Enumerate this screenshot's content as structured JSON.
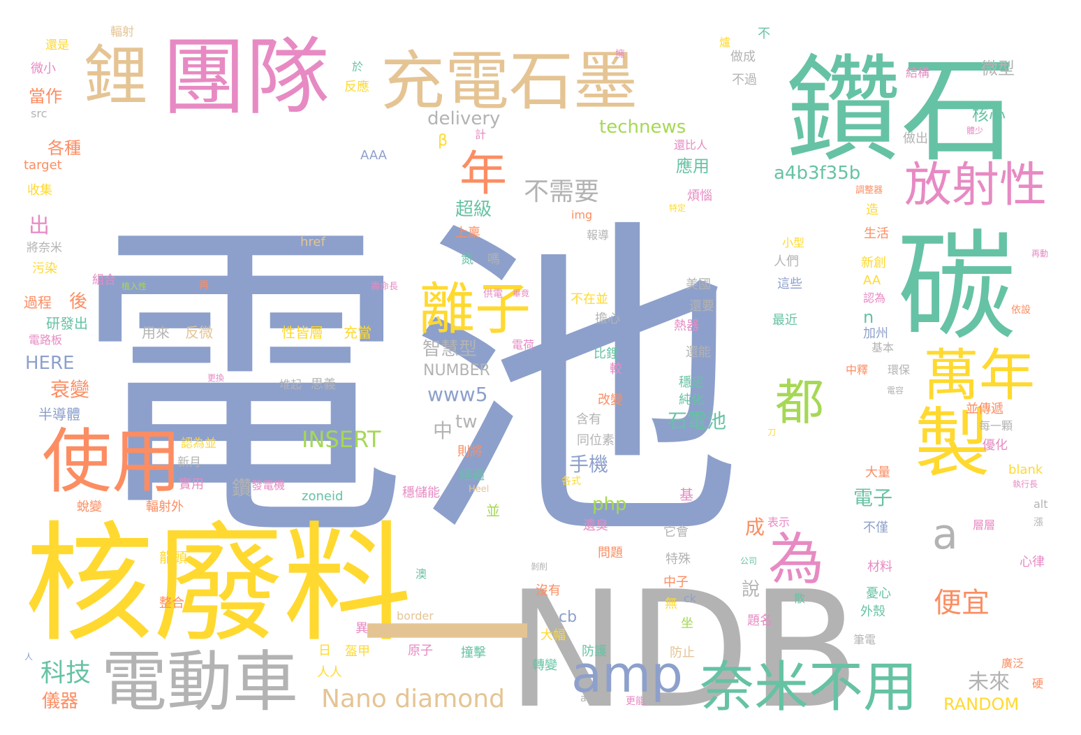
{
  "colors": {
    "blue": "#8da0cb",
    "green": "#66c2a5",
    "orange": "#fc8d62",
    "pink": "#e78ac3",
    "lime": "#a6d854",
    "yellow": "#ffd92f",
    "tan": "#e5c494",
    "gray": "#b3b3b3"
  },
  "words": [
    {
      "text": "電池",
      "color": "blue"
    },
    {
      "text": "NDB",
      "color": "gray"
    },
    {
      "text": "核廢料",
      "color": "yellow"
    },
    {
      "text": "鑽石",
      "color": "green"
    },
    {
      "text": "團隊",
      "color": "pink"
    },
    {
      "text": "充電石墨",
      "color": "tan"
    },
    {
      "text": "鋰",
      "color": "tan"
    },
    {
      "text": "碳",
      "color": "green"
    },
    {
      "text": "電動車",
      "color": "gray"
    },
    {
      "text": "使用",
      "color": "orange"
    },
    {
      "text": "奈米不用",
      "color": "green"
    },
    {
      "text": "萬年",
      "color": "yellow"
    },
    {
      "text": "製",
      "color": "yellow"
    },
    {
      "text": "放射性",
      "color": "pink"
    },
    {
      "text": "離子",
      "color": "yellow"
    },
    {
      "text": "一",
      "color": "tan"
    },
    {
      "text": "amp",
      "color": "blue"
    },
    {
      "text": "為",
      "color": "pink"
    },
    {
      "text": "都",
      "color": "lime"
    },
    {
      "text": "年",
      "color": "orange"
    },
    {
      "text": "a",
      "color": "gray"
    },
    {
      "text": "Nano diamond",
      "color": "tan"
    },
    {
      "text": "不需要",
      "color": "gray"
    },
    {
      "text": "a4b3f35b",
      "color": "green"
    },
    {
      "text": "technews",
      "color": "lime"
    },
    {
      "text": "delivery",
      "color": "gray"
    },
    {
      "text": "智慧型",
      "color": "gray"
    },
    {
      "text": "www5",
      "color": "blue"
    },
    {
      "text": "www",
      "color": "blue"
    },
    {
      "text": "INSERT",
      "color": "lime"
    },
    {
      "text": "NUMBER",
      "color": "gray"
    },
    {
      "text": "中",
      "color": "gray"
    },
    {
      "text": "tw",
      "color": "gray"
    },
    {
      "text": "科技",
      "color": "green"
    },
    {
      "text": "儀器",
      "color": "orange"
    },
    {
      "text": "衰變",
      "color": "orange"
    },
    {
      "text": "HERE",
      "color": "blue"
    },
    {
      "text": "石電池",
      "color": "green"
    },
    {
      "text": "手機",
      "color": "blue"
    },
    {
      "text": "php",
      "color": "lime"
    },
    {
      "text": "cb",
      "color": "blue"
    },
    {
      "text": "便宜",
      "color": "orange"
    },
    {
      "text": "未來",
      "color": "gray"
    },
    {
      "text": "RANDOM",
      "color": "yellow"
    },
    {
      "text": "電子",
      "color": "green"
    },
    {
      "text": "說",
      "color": "gray"
    },
    {
      "text": "成",
      "color": "orange"
    },
    {
      "text": "鑽",
      "color": "gray"
    },
    {
      "text": "超級",
      "color": "green"
    },
    {
      "text": "應用",
      "color": "green"
    },
    {
      "text": "核心",
      "color": "green"
    },
    {
      "text": "微型",
      "color": "gray"
    },
    {
      "text": "結構",
      "color": "pink"
    },
    {
      "text": "各種",
      "color": "orange"
    },
    {
      "text": "當作",
      "color": "orange"
    },
    {
      "text": "出",
      "color": "pink"
    },
    {
      "text": "後",
      "color": "orange"
    },
    {
      "text": "過程",
      "color": "orange"
    },
    {
      "text": "研發出",
      "color": "green"
    },
    {
      "text": "半導體",
      "color": "blue"
    },
    {
      "text": "收集",
      "color": "yellow"
    },
    {
      "text": "target",
      "color": "orange"
    },
    {
      "text": "src",
      "color": "gray"
    },
    {
      "text": "微小",
      "color": "pink"
    },
    {
      "text": "還是",
      "color": "yellow"
    },
    {
      "text": "輻射",
      "color": "tan"
    },
    {
      "text": "將奈米",
      "color": "gray"
    },
    {
      "text": "污染",
      "color": "yellow"
    },
    {
      "text": "組合",
      "color": "pink"
    },
    {
      "text": "電路板",
      "color": "pink"
    },
    {
      "text": "AAA",
      "color": "blue"
    },
    {
      "text": "β",
      "color": "yellow"
    },
    {
      "text": "反應",
      "color": "yellow"
    },
    {
      "text": "於",
      "color": "green"
    },
    {
      "text": "擁",
      "color": "pink"
    },
    {
      "text": "做成",
      "color": "gray"
    },
    {
      "text": "不過",
      "color": "gray"
    },
    {
      "text": "做出",
      "color": "gray"
    },
    {
      "text": "還比人",
      "color": "pink"
    },
    {
      "text": "煩惱",
      "color": "pink"
    },
    {
      "text": "造",
      "color": "yellow"
    },
    {
      "text": "生活",
      "color": "orange"
    },
    {
      "text": "新創",
      "color": "yellow"
    },
    {
      "text": "人們",
      "color": "gray"
    },
    {
      "text": "這些",
      "color": "blue"
    },
    {
      "text": "最近",
      "color": "green"
    },
    {
      "text": "美國",
      "color": "gray"
    },
    {
      "text": "還要",
      "color": "gray"
    },
    {
      "text": "熱器",
      "color": "pink"
    },
    {
      "text": "不在並",
      "color": "yellow"
    },
    {
      "text": "擔心",
      "color": "gray"
    },
    {
      "text": "比鋰",
      "color": "green"
    },
    {
      "text": "較",
      "color": "pink"
    },
    {
      "text": "改變",
      "color": "orange"
    },
    {
      "text": "含有",
      "color": "gray"
    },
    {
      "text": "同位素",
      "color": "gray"
    },
    {
      "text": "則將",
      "color": "orange"
    },
    {
      "text": "經過",
      "color": "green"
    },
    {
      "text": "穩定",
      "color": "green"
    },
    {
      "text": "純化",
      "color": "green"
    },
    {
      "text": "還能",
      "color": "gray"
    },
    {
      "text": "加州",
      "color": "blue"
    },
    {
      "text": "基本",
      "color": "gray"
    },
    {
      "text": "認為",
      "color": "pink"
    },
    {
      "text": "AA",
      "color": "yellow"
    },
    {
      "text": "n",
      "color": "green"
    },
    {
      "text": "img",
      "color": "orange"
    },
    {
      "text": "href",
      "color": "tan"
    },
    {
      "text": "上稟",
      "color": "orange"
    },
    {
      "text": "報導",
      "color": "gray"
    },
    {
      "text": "氮",
      "color": "green"
    },
    {
      "text": "嗎",
      "color": "gray"
    },
    {
      "text": "用來",
      "color": "gray"
    },
    {
      "text": "反微",
      "color": "tan"
    },
    {
      "text": "性皆層",
      "color": "yellow"
    },
    {
      "text": "充當",
      "color": "yellow"
    },
    {
      "text": "堆起",
      "color": "gray"
    },
    {
      "text": "思義",
      "color": "gray"
    },
    {
      "text": "電荷",
      "color": "pink"
    },
    {
      "text": "zoneid",
      "color": "green"
    },
    {
      "text": "發電機",
      "color": "pink"
    },
    {
      "text": "穩儲能",
      "color": "pink"
    },
    {
      "text": "輻射外",
      "color": "orange"
    },
    {
      "text": "實用",
      "color": "pink"
    },
    {
      "text": "新月",
      "color": "gray"
    },
    {
      "text": "認為並",
      "color": "yellow"
    },
    {
      "text": "蛻變",
      "color": "orange"
    },
    {
      "text": "龍頭",
      "color": "yellow"
    },
    {
      "text": "整合",
      "color": "orange"
    },
    {
      "text": "並",
      "color": "lime"
    },
    {
      "text": "基",
      "color": "pink"
    },
    {
      "text": "它會",
      "color": "gray"
    },
    {
      "text": "特殊",
      "color": "gray"
    },
    {
      "text": "中子",
      "color": "orange"
    },
    {
      "text": "沒有",
      "color": "orange"
    },
    {
      "text": "無",
      "color": "yellow"
    },
    {
      "text": "ck",
      "color": "blue"
    },
    {
      "text": "坐",
      "color": "lime"
    },
    {
      "text": "大幅",
      "color": "yellow"
    },
    {
      "text": "防護",
      "color": "green"
    },
    {
      "text": "防止",
      "color": "tan"
    },
    {
      "text": "轉變",
      "color": "green"
    },
    {
      "text": "撞擊",
      "color": "green"
    },
    {
      "text": "原子",
      "color": "pink"
    },
    {
      "text": "盔甲",
      "color": "yellow"
    },
    {
      "text": "異",
      "color": "pink"
    },
    {
      "text": "border",
      "color": "tan"
    },
    {
      "text": "日",
      "color": "yellow"
    },
    {
      "text": "人人",
      "color": "yellow"
    },
    {
      "text": "遺臭",
      "color": "pink"
    },
    {
      "text": "問題",
      "color": "orange"
    },
    {
      "text": "表示",
      "color": "pink"
    },
    {
      "text": "公司",
      "color": "green"
    },
    {
      "text": "層層",
      "color": "pink"
    },
    {
      "text": "不僅",
      "color": "blue"
    },
    {
      "text": "材料",
      "color": "pink"
    },
    {
      "text": "憂心",
      "color": "green"
    },
    {
      "text": "外殼",
      "color": "green"
    },
    {
      "text": "散",
      "color": "green"
    },
    {
      "text": "題名",
      "color": "pink"
    },
    {
      "text": "筆電",
      "color": "gray"
    },
    {
      "text": "並傳遞",
      "color": "orange"
    },
    {
      "text": "每一顆",
      "color": "gray"
    },
    {
      "text": "優化",
      "color": "pink"
    },
    {
      "text": "blank",
      "color": "yellow"
    },
    {
      "text": "執行長",
      "color": "pink"
    },
    {
      "text": "alt",
      "color": "gray"
    },
    {
      "text": "心律",
      "color": "pink"
    },
    {
      "text": "廣泛",
      "color": "orange"
    },
    {
      "text": "硬",
      "color": "orange"
    },
    {
      "text": "依設",
      "color": "orange"
    },
    {
      "text": "再動",
      "color": "pink"
    },
    {
      "text": "中釋",
      "color": "orange"
    },
    {
      "text": "環保",
      "color": "gray"
    },
    {
      "text": "電容",
      "color": "gray"
    },
    {
      "text": "大量",
      "color": "orange"
    },
    {
      "text": "小型",
      "color": "yellow"
    },
    {
      "text": "體少",
      "color": "pink"
    },
    {
      "text": "調整器",
      "color": "orange"
    },
    {
      "text": "特定",
      "color": "yellow"
    },
    {
      "text": "不",
      "color": "green"
    },
    {
      "text": "爐",
      "color": "yellow"
    },
    {
      "text": "計",
      "color": "pink"
    },
    {
      "text": "再",
      "color": "orange"
    },
    {
      "text": "植入性",
      "color": "lime"
    },
    {
      "text": "壽命長",
      "color": "pink"
    },
    {
      "text": "供電",
      "color": "pink"
    },
    {
      "text": "畢竟",
      "color": "pink"
    },
    {
      "text": "更換",
      "color": "pink"
    },
    {
      "text": "各式",
      "color": "yellow"
    },
    {
      "text": "Heel",
      "color": "tan"
    },
    {
      "text": "刀",
      "color": "yellow"
    },
    {
      "text": "澳",
      "color": "green"
    },
    {
      "text": "awv",
      "color": "gray"
    },
    {
      "text": "更能",
      "color": "pink"
    },
    {
      "text": "剝削",
      "color": "gray"
    },
    {
      "text": "人",
      "color": "blue"
    },
    {
      "text": "漲",
      "color": "gray"
    }
  ]
}
